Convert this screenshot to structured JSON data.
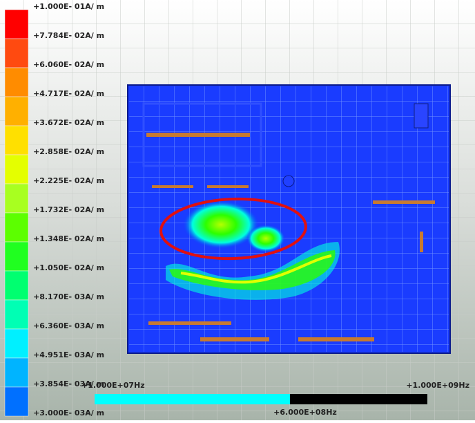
{
  "legend": {
    "labels": [
      "+1.000E- 01A/ m",
      "+7.784E- 02A/ m",
      "+6.060E- 02A/ m",
      "+4.717E- 02A/ m",
      "+3.672E- 02A/ m",
      "+2.858E- 02A/ m",
      "+2.225E- 02A/ m",
      "+1.732E- 02A/ m",
      "+1.348E- 02A/ m",
      "+1.050E- 02A/ m",
      "+8.170E- 03A/ m",
      "+6.360E- 03A/ m",
      "+4.951E- 03A/ m",
      "+3.854E- 03A/ m",
      "+3.000E- 03A/ m"
    ]
  },
  "frequency": {
    "start_label": "+1.000E+07Hz",
    "end_label": "+1.000E+09Hz",
    "current_label": "+6.000E+08Hz"
  }
}
